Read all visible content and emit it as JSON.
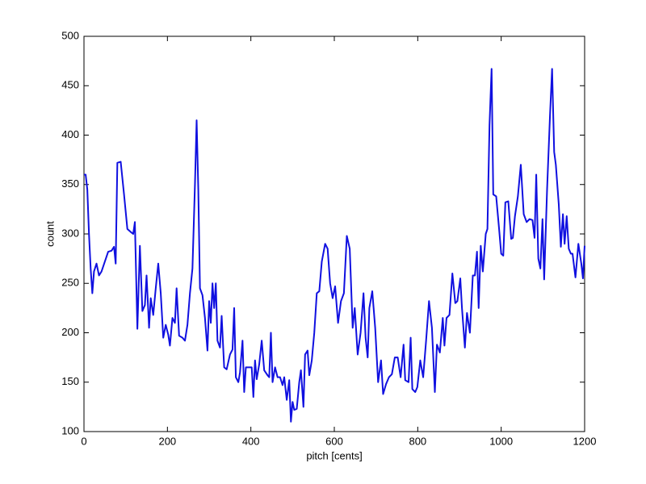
{
  "chart_data": {
    "type": "line",
    "xlabel": "pitch [cents]",
    "ylabel": "count",
    "xlim": [
      0,
      1200
    ],
    "xticks": [
      0,
      200,
      400,
      600,
      800,
      1000,
      1200
    ],
    "ylim": [
      100,
      500
    ],
    "yticks": [
      100,
      150,
      200,
      250,
      300,
      350,
      400,
      450,
      500
    ],
    "series": [
      {
        "color": "#1010e0",
        "x": [
          0,
          4,
          8,
          12,
          16,
          20,
          24,
          30,
          36,
          42,
          50,
          58,
          66,
          72,
          76,
          80,
          88,
          96,
          104,
          112,
          118,
          122,
          128,
          134,
          140,
          146,
          150,
          156,
          160,
          166,
          172,
          178,
          184,
          190,
          196,
          202,
          206,
          212,
          218,
          222,
          228,
          236,
          242,
          248,
          254,
          260,
          266,
          270,
          274,
          278,
          284,
          290,
          296,
          300,
          304,
          308,
          312,
          316,
          320,
          326,
          330,
          336,
          342,
          350,
          356,
          360,
          364,
          370,
          374,
          380,
          384,
          388,
          396,
          402,
          406,
          410,
          414,
          420,
          426,
          432,
          440,
          444,
          448,
          452,
          458,
          464,
          470,
          476,
          480,
          486,
          492,
          496,
          500,
          504,
          510,
          516,
          520,
          526,
          530,
          536,
          540,
          546,
          552,
          558,
          564,
          570,
          578,
          584,
          590,
          596,
          602,
          609,
          616,
          623,
          630,
          637,
          644,
          649,
          656,
          663,
          670,
          675,
          680,
          684,
          691,
          698,
          705,
          712,
          717,
          724,
          731,
          738,
          745,
          752,
          759,
          766,
          770,
          778,
          783,
          787,
          794,
          799,
          806,
          813,
          820,
          827,
          834,
          841,
          846,
          853,
          860,
          864,
          869,
          876,
          883,
          890,
          895,
          902,
          906,
          913,
          918,
          925,
          932,
          937,
          942,
          946,
          951,
          956,
          963,
          967,
          972,
          977,
          981,
          988,
          995,
          1000,
          1005,
          1010,
          1017,
          1024,
          1028,
          1033,
          1040,
          1047,
          1054,
          1061,
          1068,
          1075,
          1080,
          1084,
          1089,
          1094,
          1099,
          1103,
          1110,
          1117,
          1122,
          1127,
          1131,
          1138,
          1143,
          1148,
          1152,
          1157,
          1162,
          1167,
          1171,
          1178,
          1185,
          1192,
          1196,
          1200
        ],
        "values": [
          360,
          360,
          345,
          300,
          265,
          240,
          262,
          270,
          258,
          262,
          272,
          282,
          283,
          287,
          270,
          372,
          373,
          340,
          305,
          302,
          300,
          312,
          204,
          288,
          222,
          228,
          258,
          205,
          235,
          218,
          245,
          270,
          240,
          195,
          208,
          198,
          187,
          215,
          210,
          245,
          197,
          195,
          192,
          208,
          240,
          265,
          350,
          415,
          345,
          245,
          238,
          215,
          182,
          232,
          210,
          250,
          225,
          250,
          192,
          185,
          217,
          165,
          163,
          178,
          183,
          225,
          155,
          150,
          160,
          192,
          140,
          165,
          165,
          165,
          135,
          172,
          153,
          168,
          192,
          162,
          157,
          155,
          200,
          150,
          165,
          155,
          155,
          147,
          155,
          132,
          152,
          110,
          130,
          122,
          123,
          150,
          162,
          125,
          178,
          182,
          157,
          172,
          200,
          240,
          242,
          272,
          290,
          285,
          250,
          235,
          247,
          210,
          232,
          240,
          298,
          285,
          205,
          225,
          178,
          200,
          240,
          195,
          175,
          225,
          242,
          205,
          150,
          172,
          138,
          148,
          155,
          158,
          175,
          175,
          155,
          188,
          152,
          150,
          195,
          143,
          140,
          145,
          172,
          155,
          192,
          232,
          205,
          140,
          188,
          180,
          215,
          187,
          215,
          218,
          260,
          230,
          232,
          255,
          225,
          185,
          220,
          200,
          258,
          258,
          282,
          225,
          288,
          262,
          300,
          305,
          410,
          467,
          340,
          338,
          305,
          280,
          278,
          332,
          333,
          295,
          296,
          318,
          338,
          370,
          320,
          312,
          315,
          314,
          296,
          360,
          275,
          265,
          315,
          254,
          345,
          420,
          467,
          383,
          370,
          330,
          287,
          320,
          290,
          318,
          285,
          280,
          280,
          256,
          290,
          270,
          255,
          288
        ]
      }
    ]
  }
}
